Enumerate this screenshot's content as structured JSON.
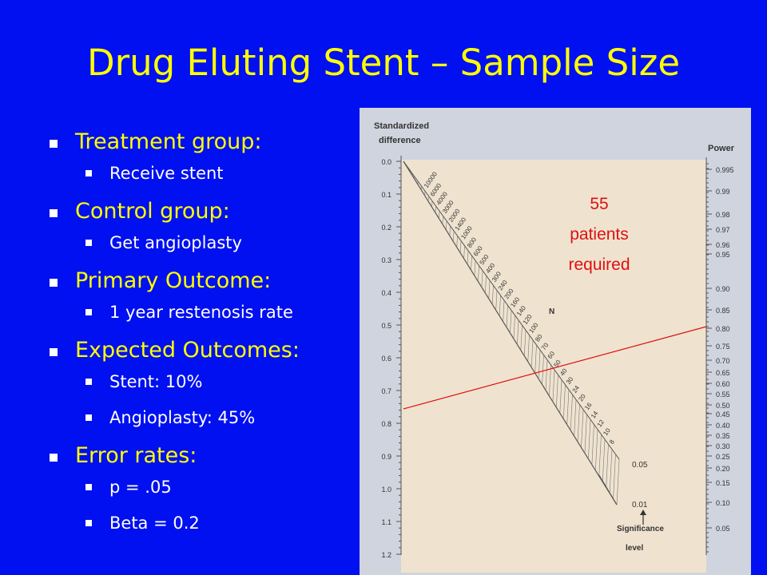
{
  "slide": {
    "title": "Drug Eluting Stent – Sample Size",
    "bullets": [
      {
        "label": "Treatment group:",
        "sub": "Receive stent"
      },
      {
        "label": "Control group:",
        "sub": "Get angioplasty"
      },
      {
        "label": "Primary Outcome:",
        "sub": "1 year restenosis rate"
      },
      {
        "label": "Expected Outcomes:",
        "subs": [
          "Stent: 10%",
          "Angioplasty: 45%"
        ]
      },
      {
        "label": "Error rates:",
        "subs": [
          "p = .05",
          "Beta = 0.2"
        ]
      }
    ]
  },
  "nomogram": {
    "left_axis_title": [
      "Standardized",
      "difference"
    ],
    "right_axis_title": "Power",
    "middle_axis_title": "N",
    "left_ticks": [
      "0.0",
      "0.1",
      "0.2",
      "0.3",
      "0.4",
      "0.5",
      "0.6",
      "0.7",
      "0.8",
      "0.9",
      "1.0",
      "1.1",
      "1.2"
    ],
    "power_ticks": [
      "0.995",
      "0.99",
      "0.98",
      "0.97",
      "0.96",
      "0.95",
      "0.90",
      "0.85",
      "0.80",
      "0.75",
      "0.70",
      "0.65",
      "0.60",
      "0.55",
      "0.50",
      "0.45",
      "0.40",
      "0.35",
      "0.30",
      "0.25",
      "0.20",
      "0.15",
      "0.10",
      "0.05"
    ],
    "n_labels": [
      "10000",
      "6000",
      "4000",
      "3000",
      "2000",
      "1400",
      "1000",
      "800",
      "600",
      "500",
      "400",
      "300",
      "240",
      "200",
      "160",
      "140",
      "120",
      "100",
      "80",
      "70",
      "60",
      "50",
      "40",
      "30",
      "24",
      "20",
      "16",
      "14",
      "12",
      "10",
      "8"
    ],
    "significance_values": [
      "0.05",
      "0.01"
    ],
    "significance_label": [
      "Significance",
      "level"
    ],
    "annotation": [
      "55",
      "patients",
      "required"
    ],
    "colors": {
      "annotation": "#E01010",
      "line": "#E01010",
      "chart_bg": "#EFE3CF",
      "panel_bg": "#D0D4DE"
    }
  }
}
